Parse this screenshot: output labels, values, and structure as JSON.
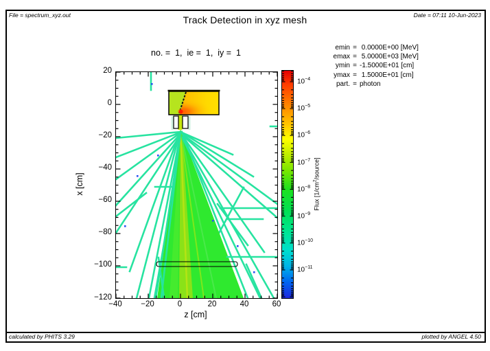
{
  "header": {
    "file_label": "File = spectrum_xyz.out",
    "title": "Track Detection in xyz mesh",
    "date_label": "Date = 07:11 10-Jun-2023"
  },
  "footer": {
    "calculated": "calculated by PHITS 3.29",
    "plotted": "plotted by ANGEL 4.50"
  },
  "plot": {
    "subtitle": "no. =  1,  ie =  1,  iy =  1",
    "xlabel": "z [cm]",
    "ylabel": "x [cm]",
    "x_ticks": [
      "−40",
      "−20",
      "0",
      "20",
      "40",
      "60"
    ],
    "y_ticks": [
      "20",
      "0",
      "−20",
      "−40",
      "−60",
      "−80",
      "−100",
      "−120"
    ]
  },
  "info_panel": {
    "rows": [
      {
        "k": "emin",
        "eq": "=",
        "v": " 0.0000E+00 [MeV]"
      },
      {
        "k": "emax",
        "eq": "=",
        "v": " 5.0000E+03 [MeV]"
      },
      {
        "k": "ymin",
        "eq": "=",
        "v": "-1.5000E+01 [cm]"
      },
      {
        "k": "ymax",
        "eq": "=",
        "v": " 1.5000E+01 [cm]"
      },
      {
        "k": "part.",
        "eq": "=",
        "v": "photon"
      }
    ]
  },
  "colorbar": {
    "unit_prefix": "Flux [1/cm",
    "unit_sup": "2",
    "unit_suffix": "/source]",
    "ticks": [
      {
        "base": "10",
        "exp": "−4"
      },
      {
        "base": "10",
        "exp": "−5"
      },
      {
        "base": "10",
        "exp": "−6"
      },
      {
        "base": "10",
        "exp": "−7"
      },
      {
        "base": "10",
        "exp": "−8"
      },
      {
        "base": "10",
        "exp": "−9"
      },
      {
        "base": "10",
        "exp": "−10"
      },
      {
        "base": "10",
        "exp": "−11"
      }
    ]
  },
  "chart_data": {
    "type": "heatmap",
    "subtype": "particle-track-2d",
    "title": "Track Detection in xyz mesh",
    "subtitle": "no. = 1, ie = 1, iy = 1",
    "xlabel": "z [cm]",
    "ylabel": "x [cm]",
    "xlim": [
      -40,
      60
    ],
    "ylim": [
      -120,
      20
    ],
    "x_major_tick_step": 20,
    "minor_tick_step": 5,
    "grid": false,
    "colorbar": {
      "label": "Flux [1/cm^2/source]",
      "scale": "log",
      "tick_exponents": [
        -4,
        -5,
        -6,
        -7,
        -8,
        -9,
        -10,
        -11
      ],
      "top_value": "~10^-3.6",
      "bottom_value": "~10^-12",
      "gradient_top_to_bottom": [
        "#e40000",
        "#ff8c00",
        "#ffff00",
        "#78e600",
        "#1ee11e",
        "#00e69b",
        "#00b4e8",
        "#1e28e0"
      ]
    },
    "parameters": {
      "no": 1,
      "ie": 1,
      "iy": 1,
      "emin_MeV": 0.0,
      "emax_MeV": 5000.0,
      "ymin_cm": -15.0,
      "ymax_cm": 15.0,
      "particle": "photon"
    },
    "features": [
      {
        "name": "target-block",
        "shape": "rect",
        "z_range": [
          -7,
          24
        ],
        "x_range": [
          -6.5,
          8
        ],
        "flux": "10^-4..10^-6 (yellow/orange fill, red hotspot at z≈0, x≈-4, black diagonal beam track)"
      },
      {
        "name": "collimator-jaws",
        "shape": "two-rects",
        "z_ranges": [
          [
            -4.5,
            -1.5
          ],
          [
            1.5,
            4.5
          ]
        ],
        "x_range": [
          -15,
          -7
        ],
        "flux": "void (white)"
      },
      {
        "name": "primary-beam-cone",
        "shape": "cone",
        "apex_zx": [
          0,
          -15
        ],
        "base_z_range": [
          -14.5,
          38.5
        ],
        "base_x": -120,
        "flux": "~10^-6.5..10^-7.5 (green, yellow-green core)"
      },
      {
        "name": "detector-slab-outline",
        "shape": "rect-outline",
        "z_range": [
          -15,
          35
        ],
        "x_range": [
          -100.5,
          -97.5
        ]
      },
      {
        "name": "scattered-photon-tracks",
        "shape": "line-fan",
        "origin_zx": [
          0,
          -16
        ],
        "flux": "~10^-9..10^-10 (cyan/turquoise straight tracks radiating left and right, some horizontal, sparse blue dots ~10^-11)"
      }
    ]
  }
}
